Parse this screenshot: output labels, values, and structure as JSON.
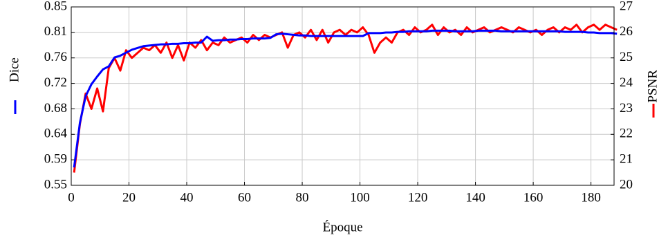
{
  "chart_data": {
    "type": "line",
    "x_label": "Époque",
    "x": [
      1,
      3,
      5,
      7,
      9,
      11,
      13,
      15,
      17,
      19,
      21,
      23,
      25,
      27,
      29,
      31,
      33,
      35,
      37,
      39,
      41,
      43,
      45,
      47,
      49,
      51,
      53,
      55,
      57,
      59,
      61,
      63,
      65,
      67,
      69,
      71,
      73,
      75,
      77,
      79,
      81,
      83,
      85,
      87,
      89,
      91,
      93,
      95,
      97,
      99,
      101,
      103,
      105,
      107,
      109,
      111,
      113,
      115,
      117,
      119,
      121,
      123,
      125,
      127,
      129,
      131,
      133,
      135,
      137,
      139,
      141,
      143,
      145,
      147,
      149,
      151,
      153,
      155,
      157,
      159,
      161,
      163,
      165,
      167,
      169,
      171,
      173,
      175,
      177,
      179,
      181,
      183,
      185,
      187,
      189
    ],
    "series": [
      {
        "name": "Dice",
        "color": "#0000ff",
        "axis": "y",
        "values": [
          0.58,
          0.655,
          0.7,
          0.72,
          0.733,
          0.745,
          0.75,
          0.765,
          0.768,
          0.773,
          0.778,
          0.781,
          0.784,
          0.785,
          0.786,
          0.787,
          0.787,
          0.788,
          0.788,
          0.789,
          0.789,
          0.79,
          0.79,
          0.8,
          0.793,
          0.794,
          0.794,
          0.795,
          0.795,
          0.796,
          0.796,
          0.797,
          0.797,
          0.797,
          0.798,
          0.804,
          0.805,
          0.804,
          0.803,
          0.802,
          0.802,
          0.801,
          0.801,
          0.801,
          0.801,
          0.801,
          0.801,
          0.801,
          0.801,
          0.801,
          0.801,
          0.806,
          0.806,
          0.806,
          0.807,
          0.807,
          0.808,
          0.808,
          0.809,
          0.809,
          0.809,
          0.809,
          0.81,
          0.81,
          0.81,
          0.81,
          0.809,
          0.809,
          0.809,
          0.809,
          0.81,
          0.81,
          0.81,
          0.81,
          0.809,
          0.809,
          0.809,
          0.809,
          0.809,
          0.809,
          0.809,
          0.809,
          0.809,
          0.809,
          0.809,
          0.808,
          0.808,
          0.808,
          0.808,
          0.807,
          0.807,
          0.806,
          0.806,
          0.806,
          0.805
        ]
      },
      {
        "name": "PSNR",
        "color": "#ff0000",
        "axis": "y2",
        "values": [
          20.5,
          22.4,
          23.6,
          23.0,
          23.8,
          22.9,
          24.6,
          25.0,
          24.5,
          25.3,
          25.0,
          25.2,
          25.4,
          25.3,
          25.5,
          25.2,
          25.6,
          25.0,
          25.5,
          24.9,
          25.6,
          25.4,
          25.7,
          25.3,
          25.6,
          25.5,
          25.8,
          25.6,
          25.7,
          25.8,
          25.6,
          25.9,
          25.7,
          25.9,
          25.8,
          25.9,
          26.0,
          25.4,
          25.9,
          26.0,
          25.8,
          26.1,
          25.7,
          26.1,
          25.6,
          26.0,
          26.1,
          25.9,
          26.1,
          26.0,
          26.2,
          25.9,
          25.2,
          25.6,
          25.8,
          25.6,
          26.0,
          26.1,
          25.9,
          26.2,
          26.0,
          26.1,
          26.3,
          25.9,
          26.2,
          26.0,
          26.1,
          25.9,
          26.2,
          26.0,
          26.1,
          26.2,
          26.0,
          26.1,
          26.2,
          26.1,
          26.0,
          26.2,
          26.1,
          26.0,
          26.1,
          25.9,
          26.1,
          26.2,
          26.0,
          26.2,
          26.1,
          26.3,
          26.0,
          26.2,
          26.3,
          26.1,
          26.3,
          26.2,
          26.1
        ]
      }
    ],
    "xlim": [
      0,
      188
    ],
    "xticks": [
      0,
      20,
      40,
      60,
      80,
      100,
      120,
      140,
      160,
      180
    ],
    "ylim": [
      0.55,
      0.85
    ],
    "yticks": [
      {
        "value": 0.55,
        "label": "0.55"
      },
      {
        "value": 0.592857,
        "label": "0.59"
      },
      {
        "value": 0.635714,
        "label": "0.64"
      },
      {
        "value": 0.678571,
        "label": "0.68"
      },
      {
        "value": 0.721429,
        "label": "0.72"
      },
      {
        "value": 0.764286,
        "label": "0.76"
      },
      {
        "value": 0.807143,
        "label": "0.81"
      },
      {
        "value": 0.85,
        "label": "0.85"
      }
    ],
    "y2lim": [
      20,
      27
    ],
    "y2ticks": [
      20,
      21,
      22,
      23,
      24,
      25,
      26,
      27
    ],
    "grid": true
  }
}
